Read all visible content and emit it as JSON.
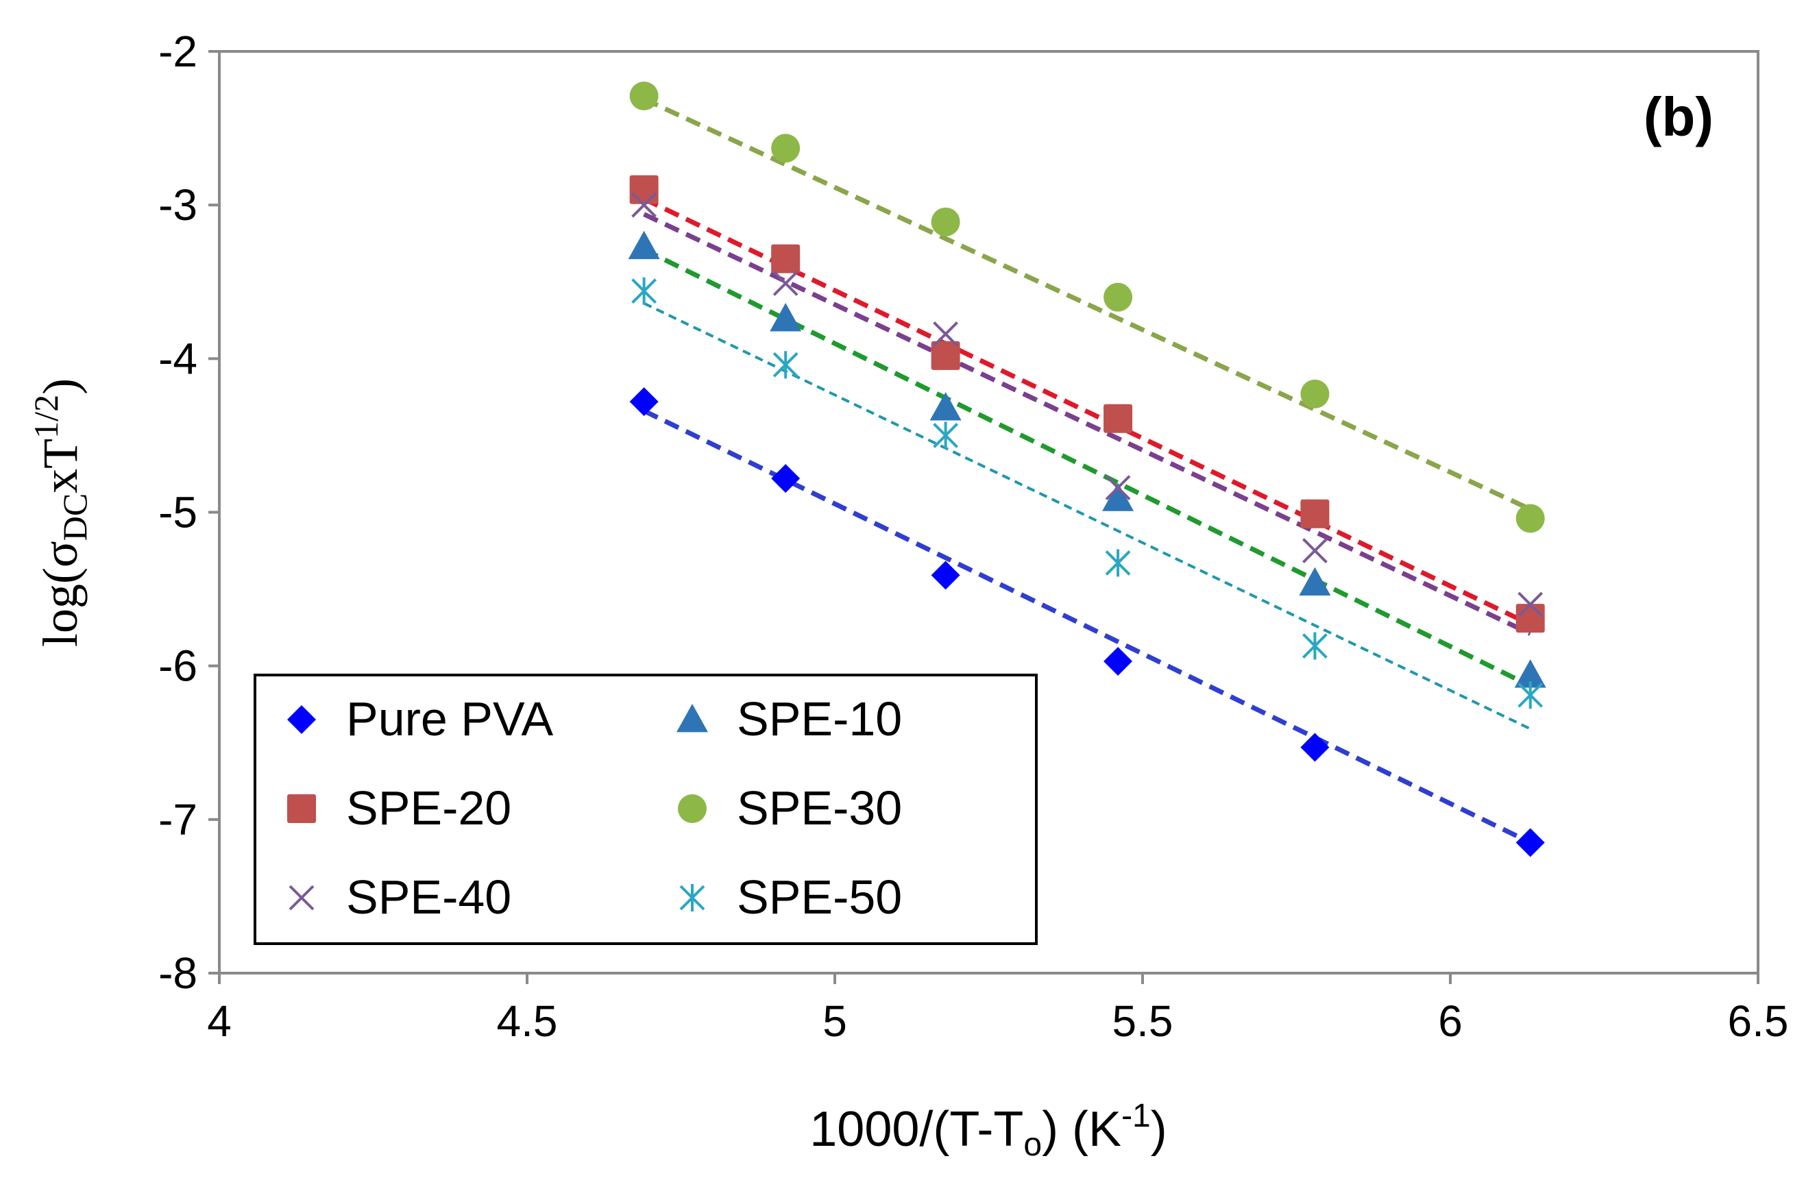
{
  "chart_data": {
    "type": "scatter",
    "panel_label": "(b)",
    "xlabel": {
      "base": "1000/(T-T",
      "sub": "o",
      "tail": ") (K",
      "sup": "-1",
      "end": ")"
    },
    "ylabel": {
      "pre": "log(σ",
      "sub": "DC",
      "mid": "xT",
      "sup": "1/2",
      "end": ")"
    },
    "xlim": [
      4,
      6.5
    ],
    "ylim": [
      -8,
      -2
    ],
    "xticks": [
      "4",
      "4.5",
      "5",
      "5.5",
      "6",
      "6.5"
    ],
    "yticks": [
      "-2",
      "-3",
      "-4",
      "-5",
      "-6",
      "-7",
      "-8"
    ],
    "x": [
      4.69,
      4.92,
      5.18,
      5.46,
      5.78,
      6.13
    ],
    "series": [
      {
        "name": "Pure PVA",
        "marker": "diamond",
        "color": "#0000ff",
        "line_color": "#2f3ed1",
        "line_width": "thick",
        "values": [
          -4.28,
          -4.78,
          -5.41,
          -5.97,
          -6.53,
          -7.15
        ],
        "fit": [
          -4.34,
          -7.15
        ]
      },
      {
        "name": "SPE-10",
        "marker": "triangle",
        "color": "#2e75b6",
        "line_color": "#1f9a2e",
        "line_width": "thick",
        "values": [
          -3.27,
          -3.74,
          -4.32,
          -4.91,
          -5.46,
          -6.06
        ],
        "fit": [
          -3.29,
          -6.13
        ]
      },
      {
        "name": "SPE-20",
        "marker": "square",
        "color": "#c0504d",
        "line_color": "#e0192a",
        "line_width": "thick",
        "values": [
          -2.9,
          -3.35,
          -3.98,
          -4.39,
          -5.01,
          -5.69
        ],
        "fit": [
          -2.96,
          -5.73
        ]
      },
      {
        "name": "SPE-30",
        "marker": "circle",
        "color": "#8db848",
        "line_color": "#8aa54a",
        "line_width": "thick",
        "values": [
          -2.29,
          -2.63,
          -3.11,
          -3.6,
          -4.23,
          -5.04
        ],
        "fit": [
          -2.31,
          -4.98
        ]
      },
      {
        "name": "SPE-40",
        "marker": "x",
        "color": "#7a5a98",
        "line_color": "#7a3f8f",
        "line_width": "thick",
        "values": [
          -3.0,
          -3.51,
          -3.84,
          -4.84,
          -5.25,
          -5.6
        ],
        "fit": [
          -3.06,
          -5.79
        ]
      },
      {
        "name": "SPE-50",
        "marker": "asterisk",
        "color": "#2aa7c4",
        "line_color": "#1f98ad",
        "line_width": "thin",
        "values": [
          -3.56,
          -4.04,
          -4.5,
          -5.33,
          -5.87,
          -6.19
        ],
        "fit": [
          -3.64,
          -6.41
        ]
      }
    ],
    "legend": {
      "placement": "bottom-left",
      "order": [
        "Pure PVA",
        "SPE-10",
        "SPE-20",
        "SPE-30",
        "SPE-40",
        "SPE-50"
      ]
    }
  }
}
